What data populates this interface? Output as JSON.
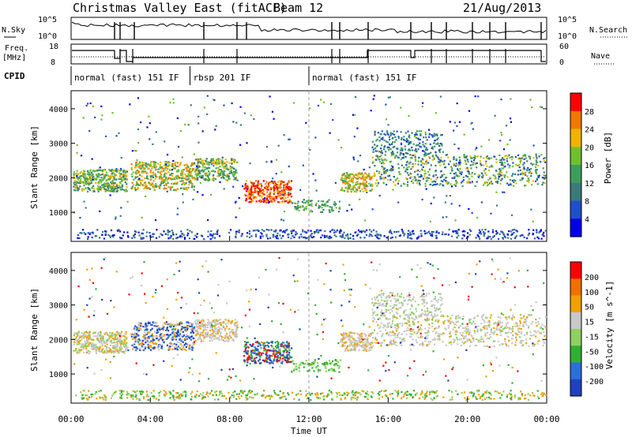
{
  "header": {
    "title": "Christmas Valley East (fitACF)",
    "beam": "Beam 12",
    "date": "21/Aug/2013"
  },
  "colors": {
    "power_scale": [
      "#0000ee",
      "#1f4fc8",
      "#3a7a7a",
      "#3d9e5c",
      "#6fbf2f",
      "#f0b400",
      "#f07800",
      "#ff0000"
    ],
    "velocity_scale": [
      "#2040c0",
      "#2b70d8",
      "#30b030",
      "#90d060",
      "#c8c8c8",
      "#f0a000",
      "#f07000",
      "#ff0000"
    ]
  },
  "chart_data": [
    {
      "type": "line",
      "name": "top-panel",
      "left_label": "N.Sky",
      "left_ticks": [
        "10^5",
        "10^0"
      ],
      "right_label": "N.Search",
      "right_ticks": [
        "10^5",
        "10^0"
      ]
    },
    {
      "type": "line",
      "name": "freq-panel",
      "left_label_1": "Freq.",
      "left_label_2": "[MHz]",
      "left_ticks": [
        "18",
        "8"
      ],
      "right_label": "Nave",
      "right_ticks": [
        "60",
        "0"
      ]
    },
    {
      "type": "table",
      "name": "cpid-bar",
      "label": "CPID",
      "segments": [
        {
          "label": "normal (fast) 151 IF",
          "start_hour": 0.0,
          "end_hour": 6.0
        },
        {
          "label": "rbsp 201 IF",
          "start_hour": 6.0,
          "end_hour": 12.0
        },
        {
          "label": "normal (fast) 151 IF",
          "start_hour": 12.0,
          "end_hour": 24.0
        }
      ]
    },
    {
      "type": "heatmap",
      "name": "power",
      "ylabel": "Slant Range [km]",
      "ylim": [
        180,
        4500
      ],
      "yticks": [
        1000,
        2000,
        3000,
        4000
      ],
      "xlim": [
        0,
        24
      ],
      "colorbar_label": "Power [dB]",
      "colorbar_ticks": [
        "28",
        "24",
        "20",
        "16",
        "12",
        "8",
        "4"
      ]
    },
    {
      "type": "heatmap",
      "name": "velocity",
      "ylabel": "Slant Range [km]",
      "ylim": [
        180,
        4500
      ],
      "yticks": [
        1000,
        2000,
        3000,
        4000
      ],
      "xlim": [
        0,
        24
      ],
      "xticks": [
        "00:00",
        "04:00",
        "08:00",
        "12:00",
        "16:00",
        "20:00",
        "00:00"
      ],
      "xlabel": "Time UT",
      "colorbar_label": "Velocity [m s^-1]",
      "colorbar_ticks": [
        "200",
        "100",
        "50",
        "15",
        "-15",
        "-50",
        "-100",
        "-200"
      ]
    }
  ]
}
